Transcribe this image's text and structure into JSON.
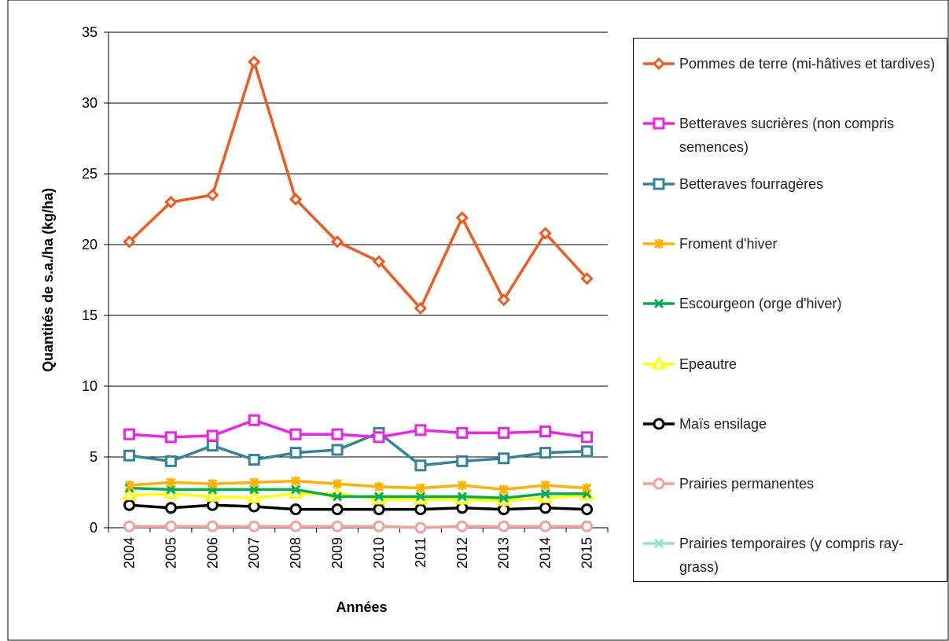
{
  "chart_data": {
    "type": "line",
    "x_label": "Années",
    "y_label": "Quantités de s.a./ha (kg/ha)",
    "categories": [
      "2004",
      "2005",
      "2006",
      "2007",
      "2008",
      "2009",
      "2010",
      "2011",
      "2012",
      "2013",
      "2014",
      "2015"
    ],
    "ylim": [
      0,
      35
    ],
    "yticks": [
      0,
      5,
      10,
      15,
      20,
      25,
      30,
      35
    ],
    "grid": true,
    "legend": "right",
    "series": [
      {
        "name": "Pommes de terre (mi-hâtives et tardives)",
        "color": "#f05a1e",
        "marker": "diamond",
        "values": [
          20.2,
          23.0,
          23.5,
          32.9,
          23.2,
          20.2,
          18.8,
          15.5,
          21.9,
          16.1,
          20.8,
          17.6
        ]
      },
      {
        "name": "Betteraves sucrières (non compris semences)",
        "color": "#ee22e8",
        "marker": "square",
        "values": [
          6.6,
          6.4,
          6.5,
          7.6,
          6.6,
          6.6,
          6.4,
          6.9,
          6.7,
          6.7,
          6.8,
          6.4
        ]
      },
      {
        "name": "Betteraves fourragères",
        "color": "#31849b",
        "marker": "square",
        "values": [
          5.1,
          4.7,
          5.8,
          4.8,
          5.3,
          5.5,
          6.7,
          4.4,
          4.7,
          4.9,
          5.3,
          5.4
        ]
      },
      {
        "name": "Froment d'hiver",
        "color": "#ffb000",
        "marker": "star",
        "values": [
          3.0,
          3.2,
          3.1,
          3.2,
          3.3,
          3.1,
          2.9,
          2.8,
          3.0,
          2.7,
          3.0,
          2.8
        ]
      },
      {
        "name": "Escourgeon (orge d'hiver)",
        "color": "#00b050",
        "marker": "x",
        "values": [
          2.8,
          2.7,
          2.7,
          2.7,
          2.7,
          2.2,
          2.2,
          2.2,
          2.2,
          2.1,
          2.4,
          2.4
        ]
      },
      {
        "name": "Epeautre",
        "color": "#ffff00",
        "marker": "triangle",
        "values": [
          2.3,
          2.4,
          2.2,
          2.1,
          2.4,
          2.4,
          2.0,
          2.0,
          2.0,
          1.9,
          2.1,
          2.3
        ]
      },
      {
        "name": "Maïs ensilage",
        "color": "#000000",
        "marker": "circle",
        "values": [
          1.6,
          1.4,
          1.6,
          1.5,
          1.3,
          1.3,
          1.3,
          1.3,
          1.4,
          1.3,
          1.4,
          1.3
        ]
      },
      {
        "name": "Prairies permanentes",
        "color": "#f4a09a",
        "marker": "circle",
        "values": [
          0.1,
          0.1,
          0.1,
          0.1,
          0.1,
          0.1,
          0.1,
          0.0,
          0.1,
          0.1,
          0.1,
          0.1
        ]
      },
      {
        "name": "Prairies temporaires (y compris ray-grass)",
        "color": "#90e8b8",
        "marker": "x",
        "values": [
          0.1,
          0.1,
          0.1,
          0.1,
          0.1,
          0.1,
          0.1,
          0.0,
          0.1,
          0.1,
          0.1,
          0.1
        ]
      }
    ]
  }
}
